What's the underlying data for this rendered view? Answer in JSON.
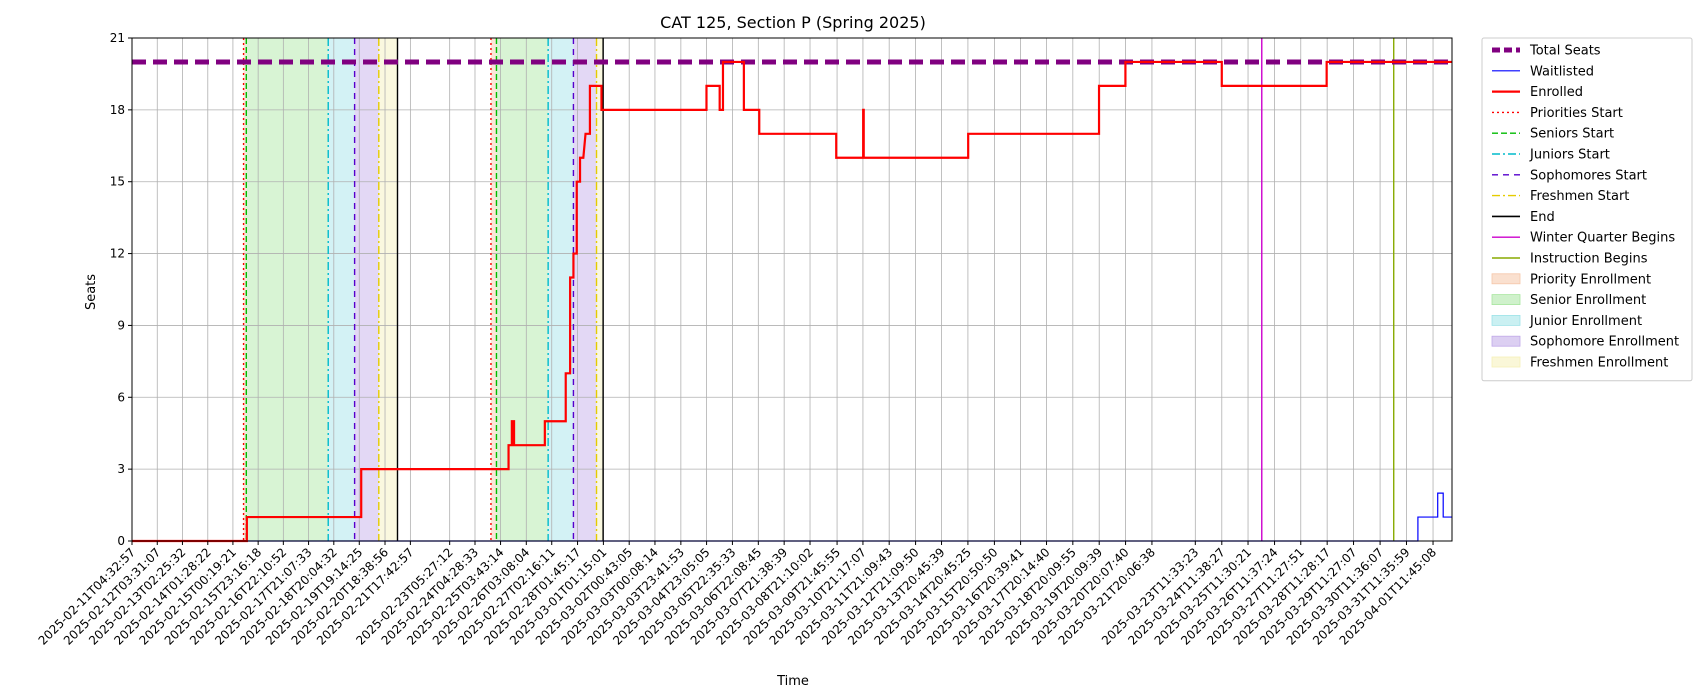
{
  "chart_data": {
    "type": "line",
    "title": "CAT 125, Section P (Spring 2025)",
    "xlabel": "Time",
    "ylabel": "Seats",
    "ylim": [
      0,
      21
    ],
    "yticks": [
      0,
      3,
      6,
      9,
      12,
      15,
      18,
      21
    ],
    "grid": true,
    "legend_position": "outside-right",
    "xlim": [
      "2025-02-11T04:32:57",
      "2025-04-02T05:00:00"
    ],
    "x_tick_labels": [
      "2025-02-11T04:32:57",
      "2025-02-12T03:31:07",
      "2025-02-13T02:25:32",
      "2025-02-14T01:28:22",
      "2025-02-15T00:19:21",
      "2025-02-15T23:16:18",
      "2025-02-16T22:10:52",
      "2025-02-17T21:07:33",
      "2025-02-18T20:04:32",
      "2025-02-19T19:14:25",
      "2025-02-20T18:38:56",
      "2025-02-21T17:42:57",
      "2025-02-23T05:27:12",
      "2025-02-24T04:28:33",
      "2025-02-25T03:43:14",
      "2025-02-26T03:08:04",
      "2025-02-27T02:16:11",
      "2025-02-28T01:45:17",
      "2025-03-01T01:15:01",
      "2025-03-02T00:43:05",
      "2025-03-03T00:08:14",
      "2025-03-03T23:41:53",
      "2025-03-04T23:05:05",
      "2025-03-05T22:35:33",
      "2025-03-06T22:08:45",
      "2025-03-07T21:38:39",
      "2025-03-08T21:10:02",
      "2025-03-09T21:45:55",
      "2025-03-10T21:17:07",
      "2025-03-11T21:09:43",
      "2025-03-12T21:09:50",
      "2025-03-13T20:45:39",
      "2025-03-14T20:45:25",
      "2025-03-15T20:50:50",
      "2025-03-16T20:39:41",
      "2025-03-17T20:14:40",
      "2025-03-18T20:09:55",
      "2025-03-19T20:09:39",
      "2025-03-20T20:07:40",
      "2025-03-21T20:06:38",
      "2025-03-23T11:33:23",
      "2025-03-24T11:38:27",
      "2025-03-25T11:30:21",
      "2025-03-26T11:37:24",
      "2025-03-27T11:27:51",
      "2025-03-28T11:28:17",
      "2025-03-29T11:27:07",
      "2025-03-30T11:36:07",
      "2025-03-31T11:35:59",
      "2025-04-01T11:45:08"
    ],
    "series": [
      {
        "name": "Total Seats",
        "color": "#800080",
        "style": "dashed-thick",
        "x": [
          "2025-02-11T04:32:57",
          "2025-04-02T05:00:00"
        ],
        "values": [
          20,
          20
        ]
      },
      {
        "name": "Waitlisted",
        "color": "#0000ff",
        "style": "solid-thin",
        "x": [
          "2025-02-11T04:32:57",
          "2025-03-31T22:00:00",
          "2025-03-31T22:00:00",
          "2025-04-01T16:00:00",
          "2025-04-01T16:00:00",
          "2025-04-01T21:00:00",
          "2025-04-01T21:00:00",
          "2025-04-02T05:00:00"
        ],
        "values": [
          0,
          0,
          1,
          1,
          2,
          2,
          1,
          1
        ]
      },
      {
        "name": "Enrolled",
        "color": "#ff0000",
        "style": "solid-thick",
        "x": [
          "2025-02-11T04:32:57",
          "2025-02-15T13:00:00",
          "2025-02-15T13:00:00",
          "2025-02-19T21:00:00",
          "2025-02-19T21:00:00",
          "2025-02-25T11:00:00",
          "2025-02-25T11:00:00",
          "2025-02-25T14:00:00",
          "2025-02-25T14:00:00",
          "2025-02-25T16:00:00",
          "2025-02-25T16:00:00",
          "2025-02-26T20:00:00",
          "2025-02-26T20:00:00",
          "2025-02-27T15:00:00",
          "2025-02-27T15:00:00",
          "2025-02-27T19:00:00",
          "2025-02-27T19:00:00",
          "2025-02-27T22:00:00",
          "2025-02-27T22:00:00",
          "2025-02-28T01:00:00",
          "2025-02-28T01:00:00",
          "2025-02-28T04:00:00",
          "2025-02-28T04:00:00",
          "2025-02-28T07:00:00",
          "2025-02-28T09:00:00",
          "2025-02-28T11:00:00",
          "2025-02-28T13:00:00",
          "2025-02-28T13:00:00",
          "2025-02-28T15:00:00",
          "2025-02-28T15:00:00",
          "2025-02-28T23:30:00",
          "2025-02-28T23:30:00",
          "2025-03-01T01:15:01",
          "2025-03-01T01:15:01",
          "2025-03-04T23:00:00",
          "2025-03-04T23:00:00",
          "2025-03-05T11:00:00",
          "2025-03-05T11:00:00",
          "2025-03-05T14:00:00",
          "2025-03-05T14:00:00",
          "2025-03-05T19:00:00",
          "2025-03-05T19:00:00",
          "2025-03-06T09:00:00",
          "2025-03-06T09:00:00",
          "2025-03-06T23:00:00",
          "2025-03-06T23:00:00",
          "2025-03-09T21:00:00",
          "2025-03-09T21:00:00",
          "2025-03-10T21:30:00",
          "2025-03-10T21:30:00",
          "2025-03-10T22:00:00",
          "2025-03-10T22:00:00",
          "2025-03-14T21:00:00",
          "2025-03-14T21:00:00",
          "2025-03-19T20:00:00",
          "2025-03-19T20:00:00",
          "2025-03-20T20:00:00",
          "2025-03-20T20:00:00",
          "2025-03-24T11:38:00",
          "2025-03-24T11:38:00",
          "2025-03-28T11:00:00",
          "2025-03-28T11:00:00",
          "2025-04-02T05:00:00"
        ],
        "values": [
          0,
          0,
          1,
          1,
          3,
          3,
          4,
          4,
          5,
          5,
          4,
          4,
          5,
          5,
          7,
          7,
          11,
          11,
          12,
          12,
          15,
          15,
          16,
          16,
          17,
          17,
          17,
          19,
          19,
          19,
          19,
          18,
          18,
          18,
          18,
          19,
          19,
          18,
          18,
          20,
          20,
          20,
          20,
          18,
          18,
          17,
          17,
          16,
          16,
          18,
          18,
          16,
          16,
          17,
          17,
          19,
          19,
          20,
          20,
          19,
          19,
          20,
          20
        ]
      }
    ],
    "vlines": [
      {
        "name": "Priorities Start",
        "color": "#ff0000",
        "dash": "2,3",
        "x": [
          "2025-02-15T10:00:00",
          "2025-02-24T19:00:00"
        ]
      },
      {
        "name": "Seniors Start",
        "color": "#00bb00",
        "dash": "6,3",
        "x": [
          "2025-02-15T12:30:00",
          "2025-02-25T00:00:00"
        ]
      },
      {
        "name": "Juniors Start",
        "color": "#00bbcc",
        "dash": "8,3,2,3",
        "x": [
          "2025-02-18T15:00:00",
          "2025-02-26T23:00:00"
        ]
      },
      {
        "name": "Sophomores Start",
        "color": "#5500cc",
        "dash": "6,5",
        "x": [
          "2025-02-19T15:00:00",
          "2025-02-27T22:00:00"
        ]
      },
      {
        "name": "Freshmen Start",
        "color": "#e5cc00",
        "dash": "8,3,2,3",
        "x": [
          "2025-02-20T13:00:00",
          "2025-02-28T19:00:00"
        ]
      },
      {
        "name": "End",
        "color": "#000000",
        "dash": "",
        "x": [
          "2025-02-21T06:00:00",
          "2025-03-01T01:00:00"
        ]
      },
      {
        "name": "Winter Quarter Begins",
        "color": "#cc00cc",
        "dash": "",
        "x": [
          "2025-03-26T00:00:00"
        ]
      },
      {
        "name": "Instruction Begins",
        "color": "#88aa00",
        "dash": "",
        "x": [
          "2025-03-31T00:00:00"
        ]
      }
    ],
    "regions": [
      {
        "name": "Priority Enrollment",
        "color": "#f5c6a8",
        "ranges": [
          [
            "2025-02-15T10:00:00",
            "2025-02-15T12:30:00"
          ],
          [
            "2025-02-24T19:00:00",
            "2025-02-25T00:00:00"
          ]
        ]
      },
      {
        "name": "Senior Enrollment",
        "color": "#a8e6a0",
        "ranges": [
          [
            "2025-02-15T12:30:00",
            "2025-02-18T15:00:00"
          ],
          [
            "2025-02-25T00:00:00",
            "2025-02-26T23:00:00"
          ]
        ]
      },
      {
        "name": "Junior Enrollment",
        "color": "#9ee3e8",
        "ranges": [
          [
            "2025-02-18T15:00:00",
            "2025-02-19T15:00:00"
          ],
          [
            "2025-02-26T23:00:00",
            "2025-02-27T22:00:00"
          ]
        ]
      },
      {
        "name": "Sophomore Enrollment",
        "color": "#c0a8e8",
        "ranges": [
          [
            "2025-02-19T15:00:00",
            "2025-02-20T13:00:00"
          ],
          [
            "2025-02-27T22:00:00",
            "2025-02-28T19:00:00"
          ]
        ]
      },
      {
        "name": "Freshmen Enrollment",
        "color": "#f5f0b8",
        "ranges": [
          [
            "2025-02-20T13:00:00",
            "2025-02-21T06:00:00"
          ],
          [
            "2025-02-28T19:00:00",
            "2025-03-01T01:00:00"
          ]
        ]
      }
    ],
    "legend": [
      {
        "label": "Total Seats",
        "kind": "line",
        "color": "#800080",
        "dash": "8,4",
        "width": 5
      },
      {
        "label": "Waitlisted",
        "kind": "line",
        "color": "#0000ff",
        "dash": "",
        "width": 1.2
      },
      {
        "label": "Enrolled",
        "kind": "line",
        "color": "#ff0000",
        "dash": "",
        "width": 2.2
      },
      {
        "label": "Priorities Start",
        "kind": "line",
        "color": "#ff0000",
        "dash": "2,3",
        "width": 1.4
      },
      {
        "label": "Seniors Start",
        "kind": "line",
        "color": "#00bb00",
        "dash": "6,3",
        "width": 1.4
      },
      {
        "label": "Juniors Start",
        "kind": "line",
        "color": "#00bbcc",
        "dash": "8,3,2,3",
        "width": 1.4
      },
      {
        "label": "Sophomores Start",
        "kind": "line",
        "color": "#5500cc",
        "dash": "6,5",
        "width": 1.4
      },
      {
        "label": "Freshmen Start",
        "kind": "line",
        "color": "#e5cc00",
        "dash": "8,3,2,3",
        "width": 1.4
      },
      {
        "label": "End",
        "kind": "line",
        "color": "#000000",
        "dash": "",
        "width": 1.6
      },
      {
        "label": "Winter Quarter Begins",
        "kind": "line",
        "color": "#cc00cc",
        "dash": "",
        "width": 1.4
      },
      {
        "label": "Instruction Begins",
        "kind": "line",
        "color": "#88aa00",
        "dash": "",
        "width": 1.4
      },
      {
        "label": "Priority Enrollment",
        "kind": "patch",
        "color": "#f5c6a8"
      },
      {
        "label": "Senior Enrollment",
        "kind": "patch",
        "color": "#a8e6a0"
      },
      {
        "label": "Junior Enrollment",
        "kind": "patch",
        "color": "#9ee3e8"
      },
      {
        "label": "Sophomore Enrollment",
        "kind": "patch",
        "color": "#c0a8e8"
      },
      {
        "label": "Freshmen Enrollment",
        "kind": "patch",
        "color": "#f5f0b8"
      }
    ]
  }
}
